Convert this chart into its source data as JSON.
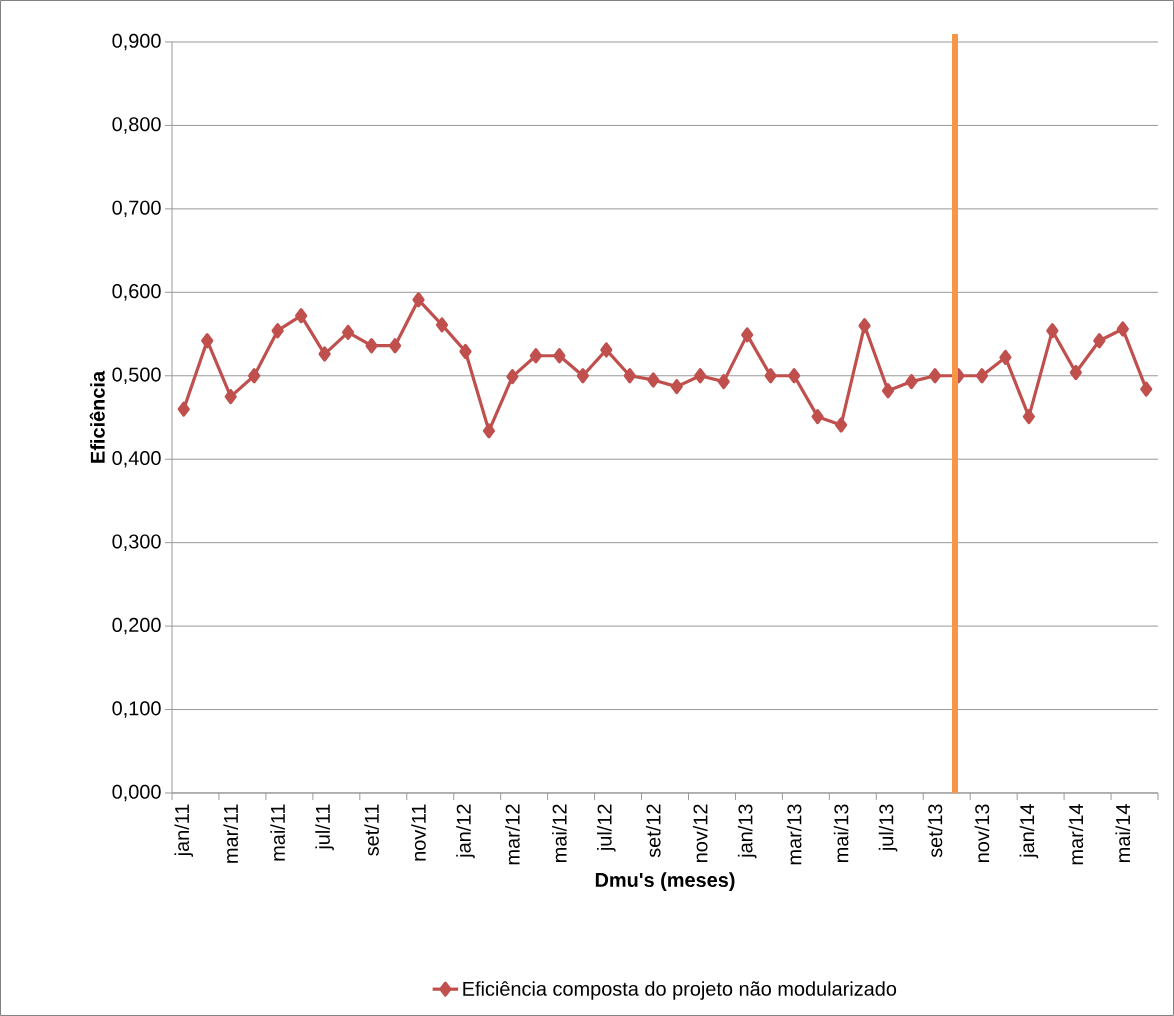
{
  "chart_data": {
    "type": "line",
    "xlabel": "Dmu's (meses)",
    "ylabel": "Eficiência",
    "categories": [
      "jan/11",
      null,
      "mar/11",
      null,
      "mai/11",
      null,
      "jul/11",
      null,
      "set/11",
      null,
      "nov/11",
      null,
      "jan/12",
      null,
      "mar/12",
      null,
      "mai/12",
      null,
      "jul/12",
      null,
      "set/12",
      null,
      "nov/12",
      null,
      "jan/13",
      null,
      "mar/13",
      null,
      "mai/13",
      null,
      "jul/13",
      null,
      "set/13",
      null,
      "nov/13",
      null,
      "jan/14",
      null,
      "mar/14",
      null,
      "mai/14",
      null
    ],
    "series": [
      {
        "name": "Eficiência composta do projeto não modularizado",
        "color": "#c0504d",
        "values": [
          0.46,
          0.542,
          0.475,
          0.5,
          0.554,
          0.572,
          0.526,
          0.552,
          0.536,
          0.536,
          0.591,
          0.561,
          0.529,
          0.434,
          0.499,
          0.524,
          0.524,
          0.5,
          0.531,
          0.5,
          0.495,
          0.487,
          0.5,
          0.493,
          0.549,
          0.5,
          0.5,
          0.451,
          0.441,
          0.56,
          0.482,
          0.493,
          0.5,
          0.5,
          0.5,
          0.522,
          0.451,
          0.554,
          0.504,
          0.542,
          0.556,
          0.484
        ]
      }
    ],
    "ylim": [
      0,
      0.9
    ],
    "yticks": [
      {
        "value": 0,
        "label": "0,000"
      },
      {
        "value": 0.1,
        "label": "0,100"
      },
      {
        "value": 0.2,
        "label": "0,200"
      },
      {
        "value": 0.3,
        "label": "0,300"
      },
      {
        "value": 0.4,
        "label": "0,400"
      },
      {
        "value": 0.5,
        "label": "0,500"
      },
      {
        "value": 0.6,
        "label": "0,600"
      },
      {
        "value": 0.7,
        "label": "0,700"
      },
      {
        "value": 0.8,
        "label": "0,800"
      },
      {
        "value": 0.9,
        "label": "0,900"
      }
    ],
    "grid": "y",
    "legend": "bottom",
    "marker": "diamond",
    "line_style": "solid"
  }
}
